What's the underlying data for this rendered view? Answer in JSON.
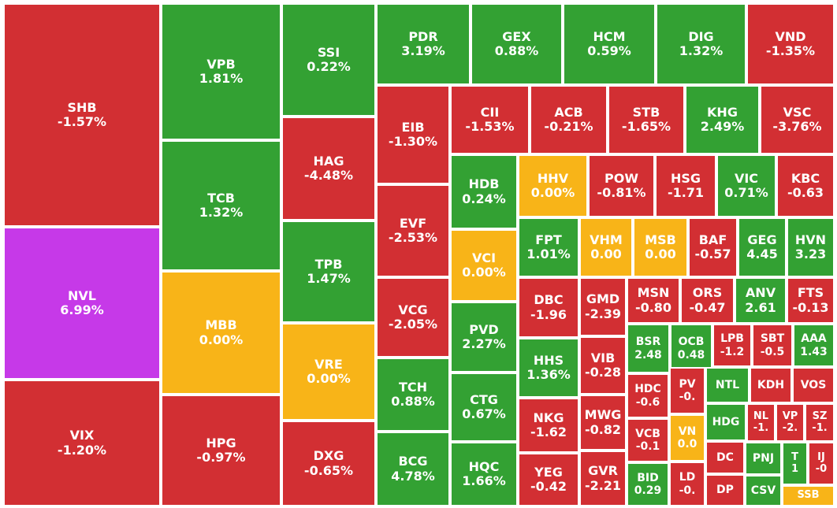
{
  "colors": {
    "up": "#33a133",
    "down": "#d22f33",
    "flat": "#f8b418",
    "ceiling": "#c639e8"
  },
  "chart_data": {
    "type": "treemap",
    "tiles": [
      {
        "ticker": "SHB",
        "change": "-1.57%",
        "status": "down"
      },
      {
        "ticker": "NVL",
        "change": "6.99%",
        "status": "ceiling"
      },
      {
        "ticker": "VIX",
        "change": "-1.20%",
        "status": "down"
      },
      {
        "ticker": "VPB",
        "change": "1.81%",
        "status": "up"
      },
      {
        "ticker": "TCB",
        "change": "1.32%",
        "status": "up"
      },
      {
        "ticker": "MBB",
        "change": "0.00%",
        "status": "flat"
      },
      {
        "ticker": "HPG",
        "change": "-0.97%",
        "status": "down"
      },
      {
        "ticker": "SSI",
        "change": "0.22%",
        "status": "up"
      },
      {
        "ticker": "HAG",
        "change": "-4.48%",
        "status": "down"
      },
      {
        "ticker": "TPB",
        "change": "1.47%",
        "status": "up"
      },
      {
        "ticker": "VRE",
        "change": "0.00%",
        "status": "flat"
      },
      {
        "ticker": "DXG",
        "change": "-0.65%",
        "status": "down"
      },
      {
        "ticker": "PDR",
        "change": "3.19%",
        "status": "up"
      },
      {
        "ticker": "GEX",
        "change": "0.88%",
        "status": "up"
      },
      {
        "ticker": "HCM",
        "change": "0.59%",
        "status": "up"
      },
      {
        "ticker": "DIG",
        "change": "1.32%",
        "status": "up"
      },
      {
        "ticker": "VND",
        "change": "-1.35%",
        "status": "down"
      },
      {
        "ticker": "EIB",
        "change": "-1.30%",
        "status": "down"
      },
      {
        "ticker": "EVF",
        "change": "-2.53%",
        "status": "down"
      },
      {
        "ticker": "VCG",
        "change": "-2.05%",
        "status": "down"
      },
      {
        "ticker": "TCH",
        "change": "0.88%",
        "status": "up"
      },
      {
        "ticker": "BCG",
        "change": "4.78%",
        "status": "up"
      },
      {
        "ticker": "CII",
        "change": "-1.53%",
        "status": "down"
      },
      {
        "ticker": "ACB",
        "change": "-0.21%",
        "status": "down"
      },
      {
        "ticker": "STB",
        "change": "-1.65%",
        "status": "down"
      },
      {
        "ticker": "KHG",
        "change": "2.49%",
        "status": "up"
      },
      {
        "ticker": "VSC",
        "change": "-3.76%",
        "status": "down"
      },
      {
        "ticker": "HDB",
        "change": "0.24%",
        "status": "up"
      },
      {
        "ticker": "VCI",
        "change": "0.00%",
        "status": "flat"
      },
      {
        "ticker": "PVD",
        "change": "2.27%",
        "status": "up"
      },
      {
        "ticker": "CTG",
        "change": "0.67%",
        "status": "up"
      },
      {
        "ticker": "HQC",
        "change": "1.66%",
        "status": "up"
      },
      {
        "ticker": "HHV",
        "change": "0.00%",
        "status": "flat"
      },
      {
        "ticker": "POW",
        "change": "-0.81%",
        "status": "down"
      },
      {
        "ticker": "HSG",
        "change": "-1.71",
        "status": "down"
      },
      {
        "ticker": "VIC",
        "change": "0.71%",
        "status": "up"
      },
      {
        "ticker": "KBC",
        "change": "-0.63",
        "status": "down"
      },
      {
        "ticker": "FPT",
        "change": "1.01%",
        "status": "up"
      },
      {
        "ticker": "VHM",
        "change": "0.00",
        "status": "flat"
      },
      {
        "ticker": "MSB",
        "change": "0.00",
        "status": "flat"
      },
      {
        "ticker": "BAF",
        "change": "-0.57",
        "status": "down"
      },
      {
        "ticker": "GEG",
        "change": "4.45",
        "status": "up"
      },
      {
        "ticker": "HVN",
        "change": "3.23",
        "status": "up"
      },
      {
        "ticker": "DBC",
        "change": "-1.96",
        "status": "down"
      },
      {
        "ticker": "HHS",
        "change": "1.36%",
        "status": "up"
      },
      {
        "ticker": "NKG",
        "change": "-1.62",
        "status": "down"
      },
      {
        "ticker": "YEG",
        "change": "-0.42",
        "status": "down"
      },
      {
        "ticker": "GMD",
        "change": "-2.39",
        "status": "down"
      },
      {
        "ticker": "VIB",
        "change": "-0.28",
        "status": "down"
      },
      {
        "ticker": "MWG",
        "change": "-0.82",
        "status": "down"
      },
      {
        "ticker": "GVR",
        "change": "-2.21",
        "status": "down"
      },
      {
        "ticker": "MSN",
        "change": "-0.80",
        "status": "down"
      },
      {
        "ticker": "ORS",
        "change": "-0.47",
        "status": "down"
      },
      {
        "ticker": "ANV",
        "change": "2.61",
        "status": "up"
      },
      {
        "ticker": "FTS",
        "change": "-0.13",
        "status": "down"
      },
      {
        "ticker": "BSR",
        "change": "2.48",
        "status": "up"
      },
      {
        "ticker": "OCB",
        "change": "0.48",
        "status": "up"
      },
      {
        "ticker": "LPB",
        "change": "-1.2",
        "status": "down"
      },
      {
        "ticker": "SBT",
        "change": "-0.5",
        "status": "down"
      },
      {
        "ticker": "AAA",
        "change": "1.43",
        "status": "up"
      },
      {
        "ticker": "HDC",
        "change": "-0.6",
        "status": "down"
      },
      {
        "ticker": "VCB",
        "change": "-0.1",
        "status": "down"
      },
      {
        "ticker": "BID",
        "change": "0.29",
        "status": "up"
      },
      {
        "ticker": "PV",
        "change": "-0.",
        "status": "down"
      },
      {
        "ticker": "VN",
        "change": "0.0",
        "status": "flat"
      },
      {
        "ticker": "LD",
        "change": "-0.",
        "status": "down"
      },
      {
        "ticker": "NTL",
        "change": "",
        "status": "up"
      },
      {
        "ticker": "KDH",
        "change": "",
        "status": "down"
      },
      {
        "ticker": "VOS",
        "change": "",
        "status": "down"
      },
      {
        "ticker": "HDG",
        "change": "",
        "status": "up"
      },
      {
        "ticker": "NL",
        "change": "-1.",
        "status": "down"
      },
      {
        "ticker": "VP",
        "change": "-2.",
        "status": "down"
      },
      {
        "ticker": "SZ",
        "change": "-1.",
        "status": "down"
      },
      {
        "ticker": "DC",
        "change": "",
        "status": "down"
      },
      {
        "ticker": "PNJ",
        "change": "",
        "status": "up"
      },
      {
        "ticker": "T",
        "change": "1",
        "status": "up"
      },
      {
        "ticker": "IJ",
        "change": "-0",
        "status": "down"
      },
      {
        "ticker": "DP",
        "change": "",
        "status": "down"
      },
      {
        "ticker": "CSV",
        "change": "",
        "status": "up"
      },
      {
        "ticker": "SSB",
        "change": "",
        "status": "flat"
      }
    ]
  }
}
